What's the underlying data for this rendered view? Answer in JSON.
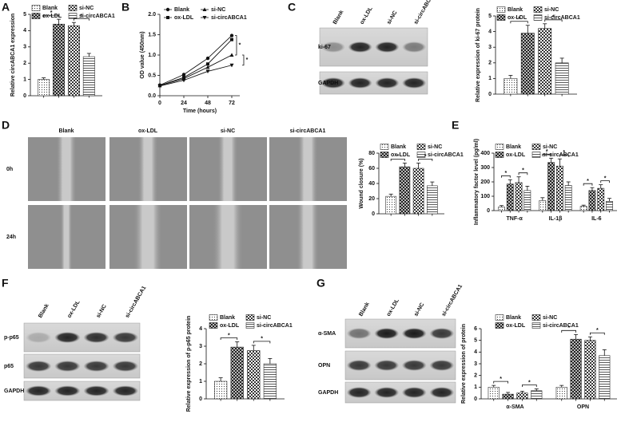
{
  "panel_labels": [
    "A",
    "B",
    "C",
    "D",
    "E",
    "F",
    "G"
  ],
  "blots": [
    {
      "columns": [
        "Blank",
        "ox-LDL",
        "si-NC",
        "si-circABCA1"
      ],
      "rows": [
        "ki-67",
        "GAPDH"
      ]
    },
    {
      "columns": [
        "Blank",
        "ox-LDL",
        "si-NC",
        "si-circABCA1"
      ],
      "rows": [
        "p-p65",
        "p65",
        "GAPDH"
      ]
    },
    {
      "columns": [
        "Blank",
        "ox-LDL",
        "si-NC",
        "si-circABCA1"
      ],
      "rows": [
        "α-SMA",
        "OPN",
        "GAPDH"
      ]
    }
  ],
  "wound_images": {
    "columns": [
      "Blank",
      "ox-LDL",
      "si-NC",
      "si-circABCA1"
    ],
    "rows": [
      "0h",
      "24h"
    ]
  },
  "chart_data": [
    {
      "type": "bar",
      "y_label": "Relative circABCA1 expression",
      "categories": [
        null
      ],
      "ylim": [
        0,
        5
      ],
      "yticks": [
        0,
        1,
        2,
        3,
        4,
        5
      ],
      "annotations": [
        "*",
        "*"
      ],
      "series": [
        {
          "name": "Blank",
          "color": "#333333",
          "pattern": "dots",
          "values": [
            1.0
          ],
          "errors": [
            0.1
          ]
        },
        {
          "name": "ox-LDL",
          "color": "#222222",
          "pattern": "checkdark",
          "values": [
            4.4
          ],
          "errors": [
            0.3
          ]
        },
        {
          "name": "si-NC",
          "color": "#222222",
          "pattern": "checker",
          "values": [
            4.3
          ],
          "errors": [
            0.2
          ]
        },
        {
          "name": "si-circABCA1",
          "color": "#333333",
          "pattern": "lines",
          "values": [
            2.4
          ],
          "errors": [
            0.2
          ]
        }
      ]
    },
    {
      "type": "line",
      "y_label": "OD value (450nm)",
      "x_label": "Time (hours)",
      "x": [
        0,
        24,
        48,
        72
      ],
      "xlim": [
        0,
        80
      ],
      "xticks": [
        0,
        24,
        48,
        72
      ],
      "ylim": [
        0,
        2
      ],
      "yticks": [
        {
          "value": 0,
          "label": "0.0"
        },
        {
          "value": 0.5,
          "label": "0.5"
        },
        {
          "value": 1,
          "label": "1.0"
        },
        {
          "value": 1.5,
          "label": "1.5"
        },
        {
          "value": 2,
          "label": "2.0"
        }
      ],
      "annotations": [
        "*",
        "*"
      ],
      "series": [
        {
          "name": "Blank",
          "color": "#111111",
          "marker": "circle",
          "values": [
            0.26,
            0.52,
            0.92,
            1.48
          ]
        },
        {
          "name": "ox-LDL",
          "color": "#111111",
          "marker": "square",
          "values": [
            0.25,
            0.45,
            0.78,
            1.38
          ]
        },
        {
          "name": "si-NC",
          "color": "#111111",
          "marker": "triangle",
          "values": [
            0.25,
            0.42,
            0.7,
            1.0
          ]
        },
        {
          "name": "si-circABCA1",
          "color": "#111111",
          "marker": "triangle-down",
          "values": [
            0.24,
            0.38,
            0.6,
            0.75
          ]
        }
      ]
    },
    {
      "type": "bar",
      "y_label": "Relative expression of ki-67 protein",
      "categories": [
        null
      ],
      "ylim": [
        0,
        5
      ],
      "yticks": [
        0,
        1,
        2,
        3,
        4,
        5
      ],
      "annotations": [
        "*",
        "*"
      ],
      "series": [
        {
          "name": "Blank",
          "color": "#333333",
          "pattern": "dots",
          "values": [
            1.0
          ],
          "errors": [
            0.2
          ]
        },
        {
          "name": "ox-LDL",
          "color": "#222222",
          "pattern": "checkdark",
          "values": [
            3.9
          ],
          "errors": [
            0.5
          ]
        },
        {
          "name": "si-NC",
          "color": "#222222",
          "pattern": "checker",
          "values": [
            4.2
          ],
          "errors": [
            0.3
          ]
        },
        {
          "name": "si-circABCA1",
          "color": "#333333",
          "pattern": "lines",
          "values": [
            2.0
          ],
          "errors": [
            0.3
          ]
        }
      ]
    },
    {
      "type": "bar",
      "y_label": "Wound closure (%)",
      "categories": [
        null
      ],
      "ylim": [
        0,
        80
      ],
      "yticks": [
        0,
        20,
        40,
        60,
        80
      ],
      "annotations": [
        "*",
        "*"
      ],
      "series": [
        {
          "name": "Blank",
          "color": "#333333",
          "pattern": "dots",
          "values": [
            23
          ],
          "errors": [
            3
          ]
        },
        {
          "name": "ox-LDL",
          "color": "#222222",
          "pattern": "checkdark",
          "values": [
            62
          ],
          "errors": [
            5
          ]
        },
        {
          "name": "si-NC",
          "color": "#222222",
          "pattern": "checker",
          "values": [
            60
          ],
          "errors": [
            7
          ]
        },
        {
          "name": "si-circABCA1",
          "color": "#333333",
          "pattern": "lines",
          "values": [
            37
          ],
          "errors": [
            5
          ]
        }
      ]
    },
    {
      "type": "bar",
      "y_label": "Inflammatory factor level (pg/ml)",
      "categories": [
        "TNF-α",
        "IL-1β",
        "IL-6"
      ],
      "ylim": [
        0,
        400
      ],
      "yticks": [
        0,
        100,
        200,
        300,
        400
      ],
      "annotations": [
        "*",
        "*",
        "*",
        "*",
        "*",
        "*"
      ],
      "series": [
        {
          "name": "Blank",
          "color": "#333333",
          "pattern": "dots",
          "values": [
            25,
            70,
            30
          ],
          "errors": [
            10,
            20,
            8
          ]
        },
        {
          "name": "ox-LDL",
          "color": "#222222",
          "pattern": "checkdark",
          "values": [
            185,
            335,
            140
          ],
          "errors": [
            30,
            30,
            20
          ]
        },
        {
          "name": "si-NC",
          "color": "#222222",
          "pattern": "checker",
          "values": [
            195,
            310,
            155
          ],
          "errors": [
            40,
            50,
            25
          ]
        },
        {
          "name": "si-circABCA1",
          "color": "#333333",
          "pattern": "lines",
          "values": [
            140,
            175,
            65
          ],
          "errors": [
            30,
            25,
            20
          ]
        }
      ]
    },
    {
      "type": "bar",
      "y_label": "Relative expression of p-p65 protein",
      "categories": [
        null
      ],
      "ylim": [
        0,
        4
      ],
      "yticks": [
        0,
        1,
        2,
        3,
        4
      ],
      "annotations": [
        "*",
        "*"
      ],
      "series": [
        {
          "name": "Blank",
          "color": "#333333",
          "pattern": "dots",
          "values": [
            1.0
          ],
          "errors": [
            0.2
          ]
        },
        {
          "name": "ox-LDL",
          "color": "#222222",
          "pattern": "checkdark",
          "values": [
            2.95
          ],
          "errors": [
            0.3
          ]
        },
        {
          "name": "si-NC",
          "color": "#222222",
          "pattern": "checker",
          "values": [
            2.75
          ],
          "errors": [
            0.3
          ]
        },
        {
          "name": "si-circABCA1",
          "color": "#333333",
          "pattern": "lines",
          "values": [
            2.0
          ],
          "errors": [
            0.3
          ]
        }
      ]
    },
    {
      "type": "bar",
      "y_label": "Relative expression of protein",
      "categories": [
        "α-SMA",
        "OPN"
      ],
      "ylim": [
        0,
        6
      ],
      "yticks": [
        0,
        1,
        2,
        3,
        4,
        5,
        6
      ],
      "annotations": [
        "*",
        "*",
        "*",
        "*"
      ],
      "series": [
        {
          "name": "Blank",
          "color": "#333333",
          "pattern": "dots",
          "values": [
            1.0,
            1.0
          ],
          "errors": [
            0.15,
            0.15
          ]
        },
        {
          "name": "ox-LDL",
          "color": "#222222",
          "pattern": "checkdark",
          "values": [
            0.4,
            5.1
          ],
          "errors": [
            0.15,
            0.4
          ]
        },
        {
          "name": "si-NC",
          "color": "#222222",
          "pattern": "checker",
          "values": [
            0.5,
            5.0
          ],
          "errors": [
            0.15,
            0.3
          ]
        },
        {
          "name": "si-circABCA1",
          "color": "#333333",
          "pattern": "lines",
          "values": [
            0.7,
            3.7
          ],
          "errors": [
            0.15,
            0.5
          ]
        }
      ]
    }
  ]
}
